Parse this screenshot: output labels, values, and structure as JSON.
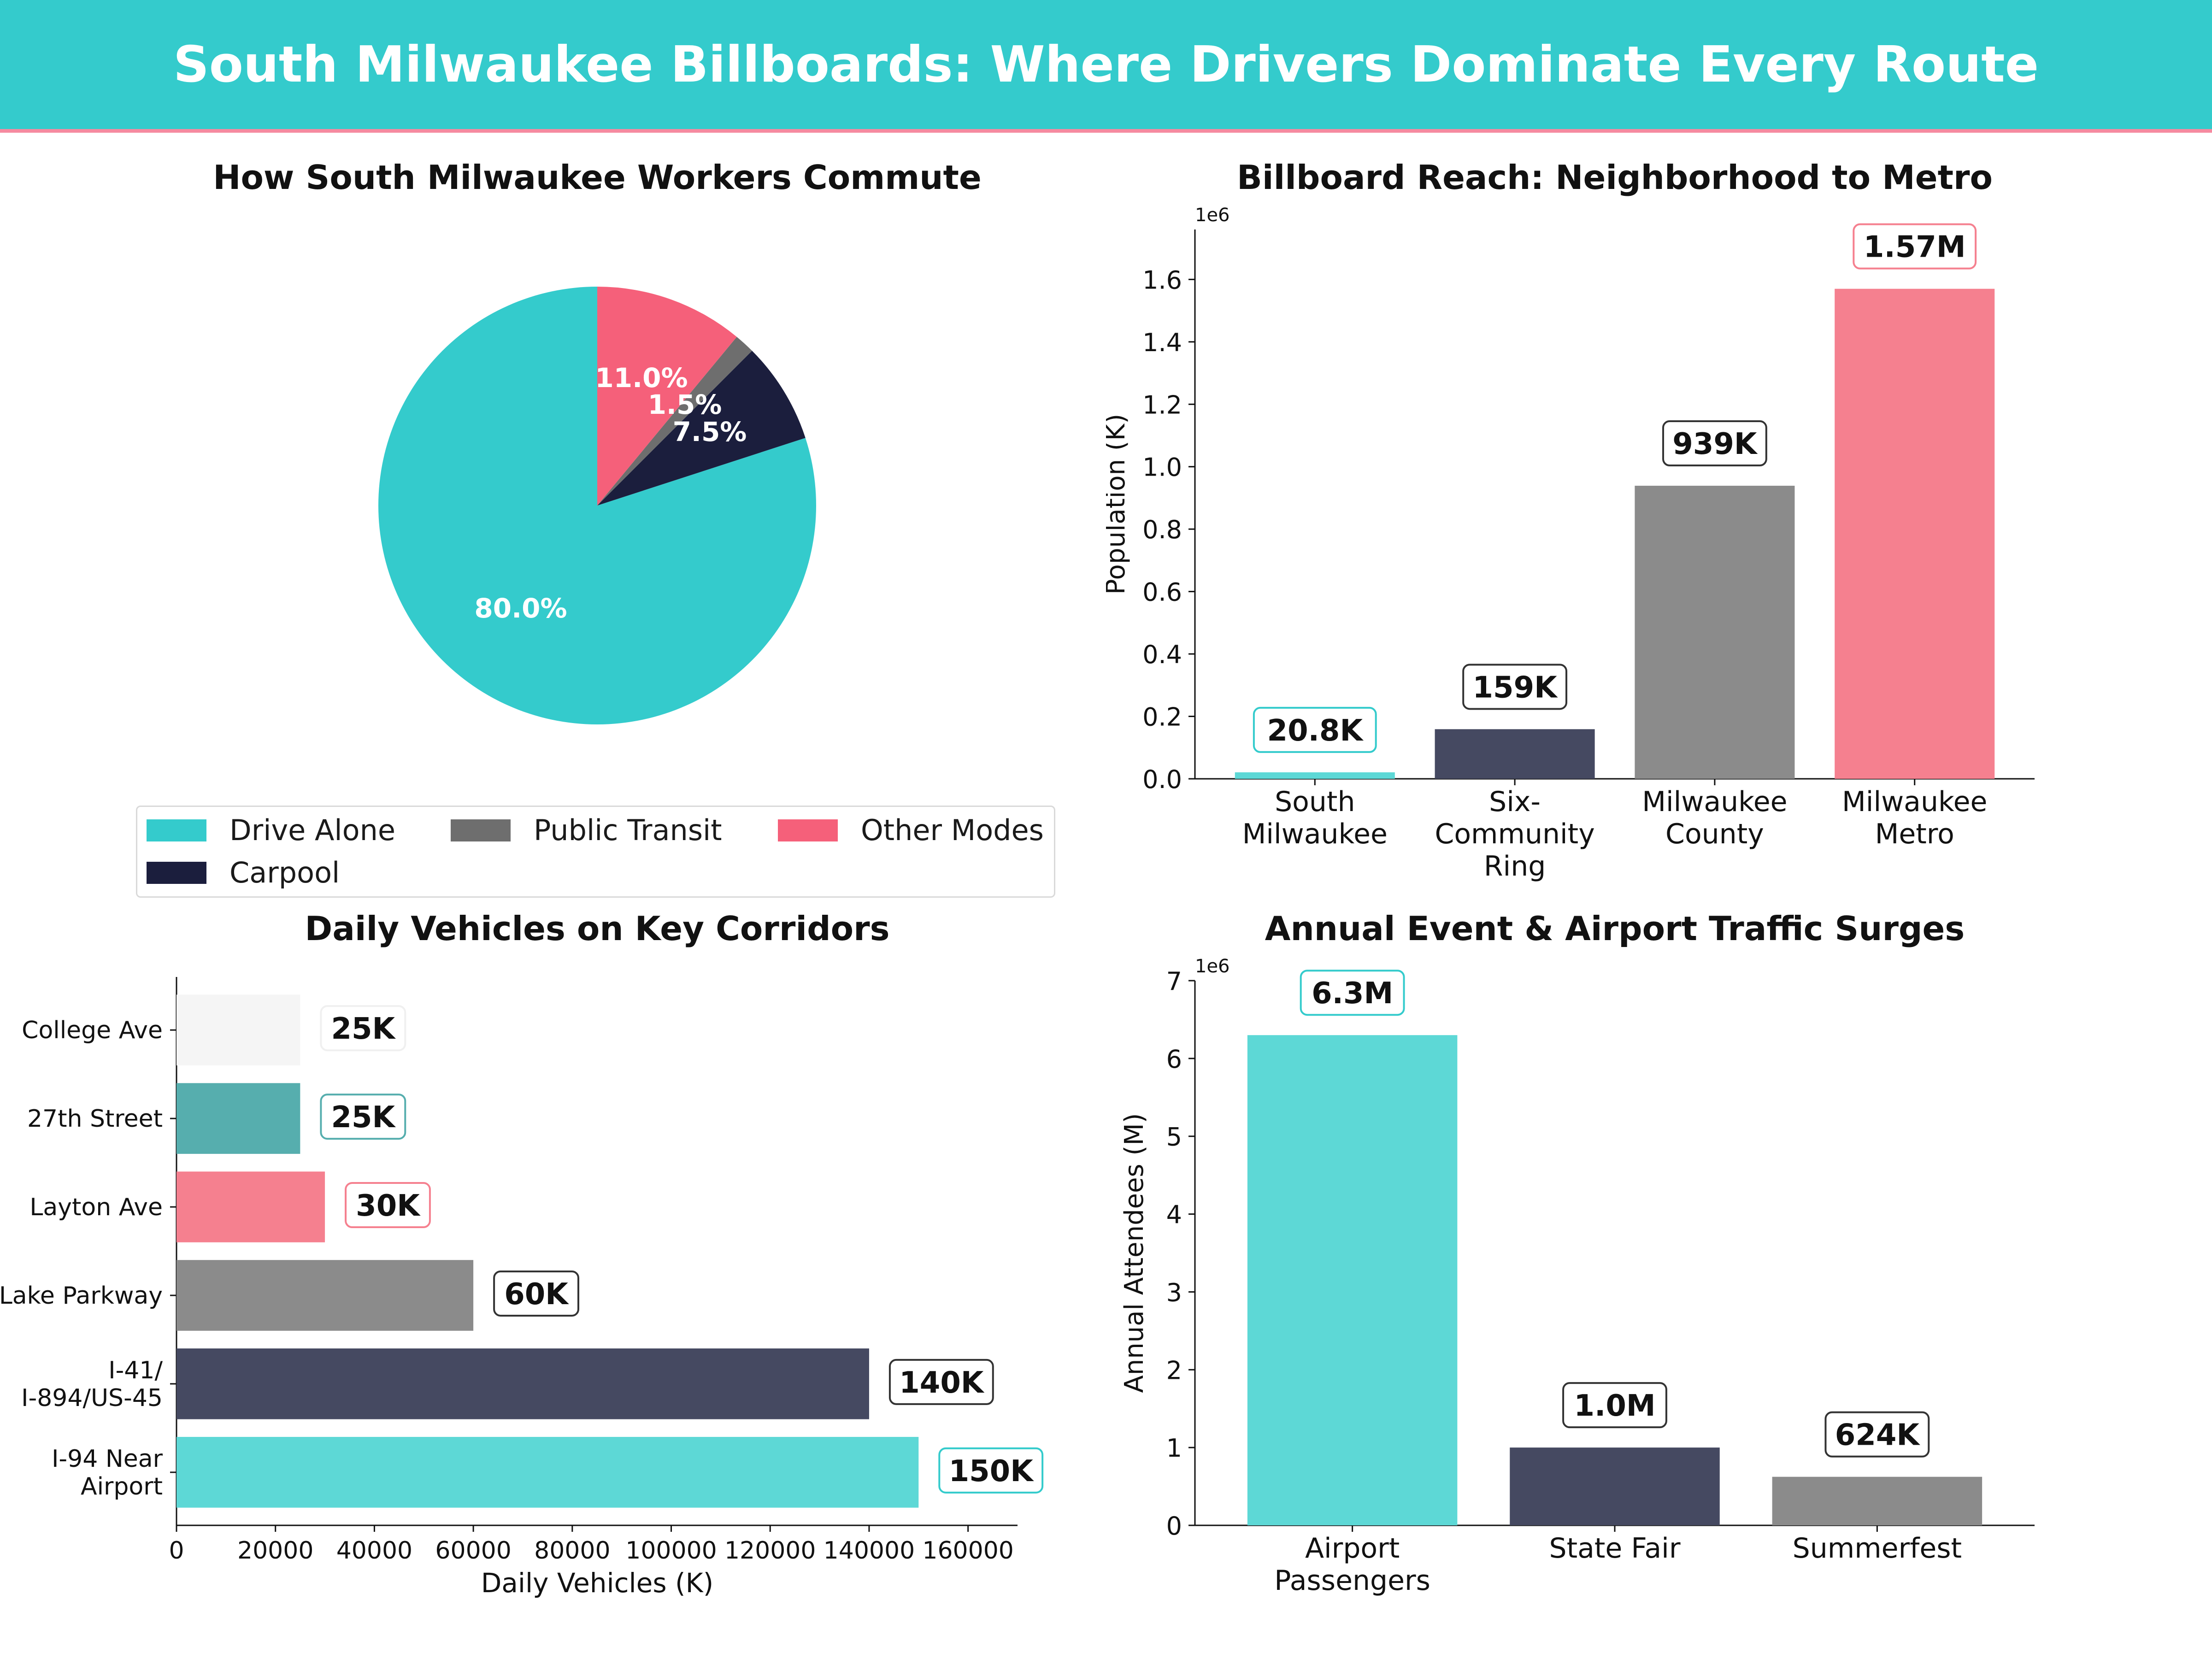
{
  "header": {
    "title": "South Milwaukee Billboards: Where Drivers Dominate Every Route"
  },
  "colors": {
    "banner": "#34cbcc",
    "banner_underline": "#f58aa0",
    "teal": "#34cbcc",
    "teal_light": "#5dd8d6",
    "teal_dark": "#56aeae",
    "navy": "#1b1e3d",
    "slate": "#454961",
    "gray": "#8b8b8b",
    "gray_dark": "#6e6e6e",
    "pink": "#f5607a",
    "pink_light": "#f5808f",
    "near_white": "#f5f5f5"
  },
  "chart_data": [
    {
      "id": "commute",
      "type": "pie",
      "title": "How South Milwaukee Workers Commute",
      "slices": [
        {
          "label": "Drive Alone",
          "value": 80.0,
          "display": "80.0%",
          "color": "#34cbcc"
        },
        {
          "label": "Carpool",
          "value": 7.5,
          "display": "7.5%",
          "color": "#1b1e3d"
        },
        {
          "label": "Public Transit",
          "value": 1.5,
          "display": "1.5%",
          "color": "#6e6e6e"
        },
        {
          "label": "Other Modes",
          "value": 11.0,
          "display": "11.0%",
          "color": "#f5607a"
        }
      ],
      "legend_order": [
        "Drive Alone",
        "Public Transit",
        "Other Modes",
        "Carpool"
      ],
      "legend_placement": "bottom"
    },
    {
      "id": "reach",
      "type": "bar",
      "title": "Billboard Reach: Neighborhood to Metro",
      "ylabel": "Population (K)",
      "y_offset_text": "1e6",
      "categories": [
        "South\nMilwaukee",
        "Six-\nCommunity\nRing",
        "Milwaukee\nCounty",
        "Milwaukee\nMetro"
      ],
      "values": [
        20800,
        159000,
        939000,
        1570000
      ],
      "labels": [
        "20.8K",
        "159K",
        "939K",
        "1.57M"
      ],
      "colors": [
        "#5dd8d6",
        "#454961",
        "#8b8b8b",
        "#f5808f"
      ],
      "ylim": [
        0,
        1760000
      ],
      "yticks": [
        0,
        200000,
        400000,
        600000,
        800000,
        1000000,
        1200000,
        1400000,
        1600000
      ],
      "ytick_labels": [
        "0.0",
        "0.2",
        "0.4",
        "0.6",
        "0.8",
        "1.0",
        "1.2",
        "1.4",
        "1.6"
      ]
    },
    {
      "id": "corridors",
      "type": "bar",
      "orientation": "horizontal",
      "title": "Daily Vehicles on Key Corridors",
      "xlabel": "Daily Vehicles (K)",
      "categories": [
        "I-94 Near\nAirport",
        "I-41/\nI-894/US-45",
        "Lake Parkway",
        "Layton Ave",
        "27th Street",
        "College Ave"
      ],
      "values": [
        150000,
        140000,
        60000,
        30000,
        25000,
        25000
      ],
      "labels": [
        "150K",
        "140K",
        "60K",
        "30K",
        "25K",
        "25K"
      ],
      "colors": [
        "#5dd8d6",
        "#454961",
        "#8b8b8b",
        "#f5808f",
        "#56aeae",
        "#f5f5f5"
      ],
      "xlim": [
        0,
        170000
      ],
      "xticks": [
        0,
        20000,
        40000,
        60000,
        80000,
        100000,
        120000,
        140000,
        160000
      ],
      "xtick_labels": [
        "0",
        "20000",
        "40000",
        "60000",
        "80000",
        "100000",
        "120000",
        "140000",
        "160000"
      ]
    },
    {
      "id": "events",
      "type": "bar",
      "title": "Annual Event & Airport Traffic Surges",
      "ylabel": "Annual Attendees (M)",
      "y_offset_text": "1e6",
      "categories": [
        "Airport\nPassengers",
        "State Fair",
        "Summerfest"
      ],
      "values": [
        6300000,
        1000000,
        624000
      ],
      "labels": [
        "6.3M",
        "1.0M",
        "624K"
      ],
      "colors": [
        "#5dd8d6",
        "#454961",
        "#8b8b8b"
      ],
      "ylim": [
        0,
        7000000
      ],
      "yticks": [
        0,
        1000000,
        2000000,
        3000000,
        4000000,
        5000000,
        6000000,
        7000000
      ],
      "ytick_labels": [
        "0",
        "1",
        "2",
        "3",
        "4",
        "5",
        "6",
        "7"
      ]
    }
  ]
}
